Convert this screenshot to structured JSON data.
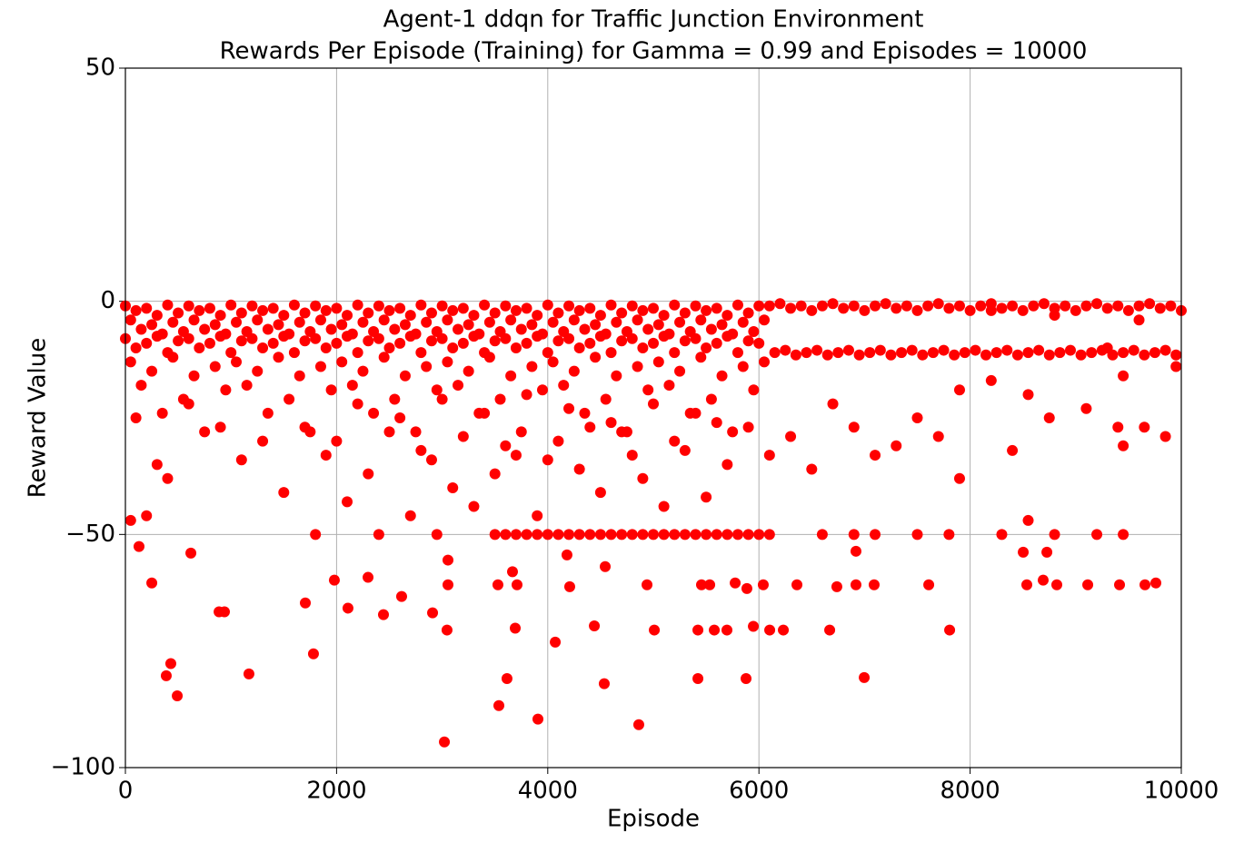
{
  "chart_data": {
    "type": "scatter",
    "title": [
      "Agent-1 ddqn for Traffic Junction Environment",
      "Rewards Per Episode (Training) for Gamma = 0.99 and Episodes = 10000"
    ],
    "x_label": "Episode",
    "y_label": "Reward Value",
    "color": "#ff0000",
    "grid": true,
    "xlim": [
      0,
      10000
    ],
    "xticks": [
      0,
      2000,
      4000,
      6000,
      8000,
      10000
    ],
    "ylim": [
      -100,
      50
    ],
    "yticks": [
      {
        "value": -100,
        "label": "−100"
      },
      {
        "value": -50,
        "label": "−50"
      },
      0,
      50
    ],
    "x": [
      0,
      100,
      200,
      300,
      400,
      500,
      600,
      700,
      800,
      900,
      1000,
      1100,
      1200,
      1300,
      1400,
      1500,
      1600,
      1700,
      1800,
      1900,
      2000,
      2100,
      2200,
      2300,
      2400,
      2500,
      2600,
      2700,
      2800,
      2900,
      3000,
      3100,
      3200,
      3300,
      3400,
      3500,
      3600,
      3700,
      3800,
      3900,
      4000,
      4100,
      4200,
      4300,
      4400,
      4500,
      4600,
      4700,
      4800,
      4900,
      5000,
      5100,
      5200,
      5300,
      5400,
      5500,
      5600,
      5700,
      5800,
      5900,
      6000,
      50,
      150,
      250,
      350,
      450,
      550,
      650,
      750,
      850,
      950,
      1050,
      1150,
      1250,
      1350,
      1450,
      1550,
      1650,
      1750,
      1850,
      1950,
      2050,
      2150,
      2250,
      2350,
      2450,
      2550,
      2650,
      2750,
      2850,
      2950,
      3050,
      3150,
      3250,
      3350,
      3450,
      3550,
      3650,
      3750,
      3850,
      3950,
      4050,
      4150,
      4250,
      4350,
      4450,
      4550,
      4650,
      4750,
      4850,
      4950,
      5050,
      5150,
      5250,
      5350,
      5450,
      5550,
      5650,
      5750,
      5850,
      5950,
      6050,
      0,
      100,
      200,
      300,
      400,
      500,
      600,
      700,
      800,
      900,
      1000,
      1100,
      1200,
      1300,
      1400,
      1500,
      1600,
      1700,
      1800,
      1900,
      2000,
      2100,
      2200,
      2300,
      2400,
      2500,
      2600,
      2700,
      2800,
      2900,
      3000,
      3100,
      3200,
      3300,
      3400,
      3500,
      3600,
      3700,
      3800,
      3900,
      4000,
      4100,
      4200,
      4300,
      4400,
      4500,
      4600,
      4700,
      4800,
      4900,
      5000,
      5100,
      5200,
      5300,
      5400,
      5500,
      5600,
      5700,
      5800,
      5900,
      6000,
      50,
      150,
      250,
      350,
      450,
      550,
      650,
      750,
      850,
      950,
      1050,
      1150,
      1250,
      1350,
      1450,
      1550,
      1650,
      1750,
      1850,
      1950,
      2050,
      2150,
      2250,
      2350,
      2450,
      2550,
      2650,
      2750,
      2850,
      2950,
      3050,
      3150,
      3250,
      3350,
      3450,
      3550,
      3650,
      3750,
      3850,
      3950,
      4050,
      4150,
      4250,
      4350,
      4450,
      4550,
      4650,
      4750,
      4850,
      4950,
      5050,
      5150,
      5250,
      5350,
      5450,
      5550,
      5650,
      5750,
      5850,
      5950,
      6050,
      6100,
      6200,
      6300,
      6400,
      6500,
      6600,
      6700,
      6800,
      6900,
      7000,
      7100,
      7200,
      7300,
      7400,
      7500,
      7600,
      7700,
      7800,
      7900,
      8000,
      8100,
      8200,
      8300,
      8400,
      8500,
      8600,
      8700,
      8800,
      8900,
      9000,
      9100,
      9200,
      9300,
      9400,
      9500,
      9600,
      9700,
      9800,
      9900,
      10000,
      6150,
      6250,
      6350,
      6450,
      6550,
      6650,
      6750,
      6850,
      6950,
      7050,
      7150,
      7250,
      7350,
      7450,
      7550,
      7650,
      7750,
      7850,
      7950,
      8050,
      8150,
      8250,
      8350,
      8450,
      8550,
      8650,
      8750,
      8850,
      8950,
      9050,
      9150,
      9250,
      9350,
      9450,
      9550,
      9650,
      9750,
      9850,
      9950,
      3021,
      3907,
      4862,
      491,
      387,
      430,
      1170,
      1781,
      3537,
      3614,
      4535,
      5422,
      5878,
      6997,
      4071,
      4441,
      5009,
      3046,
      3692,
      5422,
      5577,
      5697,
      5947,
      6102,
      6231,
      6670,
      7806,
      2444,
      2616,
      2108,
      1704,
      887,
      938,
      2909,
      250,
      1979,
      2298,
      3055,
      3528,
      3709,
      4208,
      4940,
      5456,
      5534,
      5775,
      5886,
      6041,
      6360,
      6738,
      6919,
      7091,
      7608,
      8537,
      8692,
      8821,
      9114,
      9415,
      9656,
      9759,
      3666,
      4544,
      3055,
      4182,
      620,
      129,
      6919,
      8503,
      8727,
      3500,
      3700,
      3900,
      4100,
      4300,
      4500,
      4700,
      4900,
      5100,
      5300,
      5500,
      5700,
      5900,
      6100,
      6600,
      6900,
      7100,
      7500,
      7800,
      8300,
      8800,
      9200,
      9450,
      1800,
      2400,
      2950,
      3600,
      3800,
      4000,
      4200,
      4400,
      4600,
      4800,
      5000,
      5200,
      5400,
      5600,
      5800,
      6000,
      100,
      300,
      600,
      900,
      1100,
      1300,
      1500,
      1700,
      1900,
      2100,
      2300,
      2500,
      2700,
      2900,
      3100,
      3300,
      3500,
      3700,
      3900,
      4100,
      4300,
      4500,
      4700,
      4900,
      5100,
      5300,
      5500,
      5700,
      5900,
      6100,
      6300,
      6500,
      6700,
      6900,
      7100,
      7300,
      7500,
      7700,
      7900,
      8200,
      8400,
      8550,
      8550,
      8750,
      9100,
      9400,
      9450,
      9650,
      9850,
      9450,
      8800,
      8200,
      9600,
      9950,
      9300,
      7900,
      50,
      200,
      400,
      2200,
      2600,
      3000,
      3400,
      3800,
      4200,
      4600,
      5000,
      5400,
      2000,
      2800,
      3200,
      3600,
      4000,
      4400,
      4800,
      5200,
      5600
    ],
    "values": [
      -1,
      -2,
      -1.5,
      -3,
      -0.8,
      -2.5,
      -1,
      -2,
      -1.5,
      -3,
      -0.8,
      -2.5,
      -1,
      -2,
      -1.5,
      -3,
      -0.8,
      -2.5,
      -1,
      -2,
      -1.5,
      -3,
      -0.8,
      -2.5,
      -1,
      -2,
      -1.5,
      -3,
      -0.8,
      -2.5,
      -1,
      -2,
      -1.5,
      -3,
      -0.8,
      -2.5,
      -1,
      -2,
      -1.5,
      -3,
      -0.8,
      -2.5,
      -1,
      -2,
      -1.5,
      -3,
      -0.8,
      -2.5,
      -1,
      -2,
      -1.5,
      -3,
      -0.8,
      -2.5,
      -1,
      -2,
      -1.5,
      -3,
      -0.8,
      -2.5,
      -1,
      -4,
      -6,
      -5,
      -7,
      -4.5,
      -6.5,
      -4,
      -6,
      -5,
      -7,
      -4.5,
      -6.5,
      -4,
      -6,
      -5,
      -7,
      -4.5,
      -6.5,
      -4,
      -6,
      -5,
      -7,
      -4.5,
      -6.5,
      -4,
      -6,
      -5,
      -7,
      -4.5,
      -6.5,
      -4,
      -6,
      -5,
      -7,
      -4.5,
      -6.5,
      -4,
      -6,
      -5,
      -7,
      -4.5,
      -6.5,
      -4,
      -6,
      -5,
      -7,
      -4.5,
      -6.5,
      -4,
      -6,
      -5,
      -7,
      -4.5,
      -6.5,
      -4,
      -6,
      -5,
      -7,
      -4.5,
      -6.5,
      -4,
      -8,
      -10,
      -9,
      -7.5,
      -11,
      -8.5,
      -8,
      -10,
      -9,
      -7.5,
      -11,
      -8.5,
      -8,
      -10,
      -9,
      -7.5,
      -11,
      -8.5,
      -8,
      -10,
      -9,
      -7.5,
      -11,
      -8.5,
      -8,
      -10,
      -9,
      -7.5,
      -11,
      -8.5,
      -8,
      -10,
      -9,
      -7.5,
      -11,
      -8.5,
      -8,
      -10,
      -9,
      -7.5,
      -11,
      -8.5,
      -8,
      -10,
      -9,
      -7.5,
      -11,
      -8.5,
      -8,
      -10,
      -9,
      -7.5,
      -11,
      -8.5,
      -8,
      -10,
      -9,
      -7.5,
      -11,
      -8.5,
      -9,
      -13,
      -18,
      -15,
      -24,
      -12,
      -21,
      -16,
      -28,
      -14,
      -19,
      -13,
      -18,
      -15,
      -24,
      -12,
      -21,
      -16,
      -28,
      -14,
      -19,
      -13,
      -18,
      -15,
      -24,
      -12,
      -21,
      -16,
      -28,
      -14,
      -19,
      -13,
      -18,
      -15,
      -24,
      -12,
      -21,
      -16,
      -28,
      -14,
      -19,
      -13,
      -18,
      -15,
      -24,
      -12,
      -21,
      -16,
      -28,
      -14,
      -19,
      -13,
      -18,
      -15,
      -24,
      -12,
      -21,
      -16,
      -28,
      -14,
      -19,
      -13,
      -1,
      -0.5,
      -1.5,
      -1,
      -2,
      -1,
      -0.5,
      -1.5,
      -1,
      -2,
      -1,
      -0.5,
      -1.5,
      -1,
      -2,
      -1,
      -0.5,
      -1.5,
      -1,
      -2,
      -1,
      -0.5,
      -1.5,
      -1,
      -2,
      -1,
      -0.5,
      -1.5,
      -1,
      -2,
      -1,
      -0.5,
      -1.5,
      -1,
      -2,
      -1,
      -0.5,
      -1.5,
      -1,
      -2,
      -11,
      -10.5,
      -11.5,
      -11,
      -10.5,
      -11.5,
      -11,
      -10.5,
      -11.5,
      -11,
      -10.5,
      -11.5,
      -11,
      -10.5,
      -11.5,
      -11,
      -10.5,
      -11.5,
      -11,
      -10.5,
      -11.5,
      -11,
      -10.5,
      -11.5,
      -11,
      -10.5,
      -11.5,
      -11,
      -10.5,
      -11.5,
      -11,
      -10.5,
      -11.5,
      -11,
      -10.5,
      -11.5,
      -11,
      -10.5,
      -11.5,
      -94.5,
      -89.6,
      -90.8,
      -84.6,
      -80.3,
      -77.7,
      -79.9,
      -75.6,
      -86.7,
      -80.9,
      -82,
      -80.9,
      -80.9,
      -80.7,
      -73.1,
      -69.6,
      -70.5,
      -70.5,
      -70.1,
      -70.5,
      -70.5,
      -70.5,
      -69.7,
      -70.5,
      -70.5,
      -70.5,
      -70.5,
      -67.2,
      -63.3,
      -65.8,
      -64.7,
      -66.6,
      -66.6,
      -66.8,
      -60.4,
      -59.8,
      -59.2,
      -60.8,
      -60.8,
      -60.8,
      -61.2,
      -60.8,
      -60.8,
      -60.8,
      -60.4,
      -61.6,
      -60.8,
      -60.8,
      -61.2,
      -60.8,
      -60.8,
      -60.8,
      -60.8,
      -59.8,
      -60.8,
      -60.8,
      -60.8,
      -60.8,
      -60.4,
      -58,
      -56.9,
      -55.5,
      -54.4,
      -54,
      -52.6,
      -53.6,
      -53.8,
      -53.8,
      -50,
      -50,
      -50,
      -50,
      -50,
      -50,
      -50,
      -50,
      -50,
      -50,
      -50,
      -50,
      -50,
      -50,
      -50,
      -50,
      -50,
      -50,
      -50,
      -50,
      -50,
      -50,
      -50,
      -50,
      -50,
      -50,
      -50,
      -50,
      -50,
      -50,
      -50,
      -50,
      -50,
      -50,
      -50,
      -50,
      -50,
      -50,
      -50,
      -25,
      -35,
      -22,
      -27,
      -34,
      -30,
      -41,
      -27,
      -33,
      -43,
      -37,
      -28,
      -46,
      -34,
      -40,
      -44,
      -37,
      -33,
      -46,
      -30,
      -36,
      -41,
      -28,
      -38,
      -44,
      -32,
      -42,
      -35,
      -27,
      -33,
      -29,
      -36,
      -22,
      -27,
      -33,
      -31,
      -25,
      -29,
      -38,
      -17,
      -32,
      -47,
      -20,
      -25,
      -23,
      -27,
      -31,
      -27,
      -29,
      -16,
      -3,
      -2,
      -4,
      -14,
      -10,
      -19,
      -47,
      -46,
      -38,
      -22,
      -25,
      -21,
      -24,
      -20,
      -23,
      -26,
      -22,
      -24,
      -30,
      -32,
      -29,
      -31,
      -34,
      -27,
      -33,
      -30,
      -26
    ]
  }
}
